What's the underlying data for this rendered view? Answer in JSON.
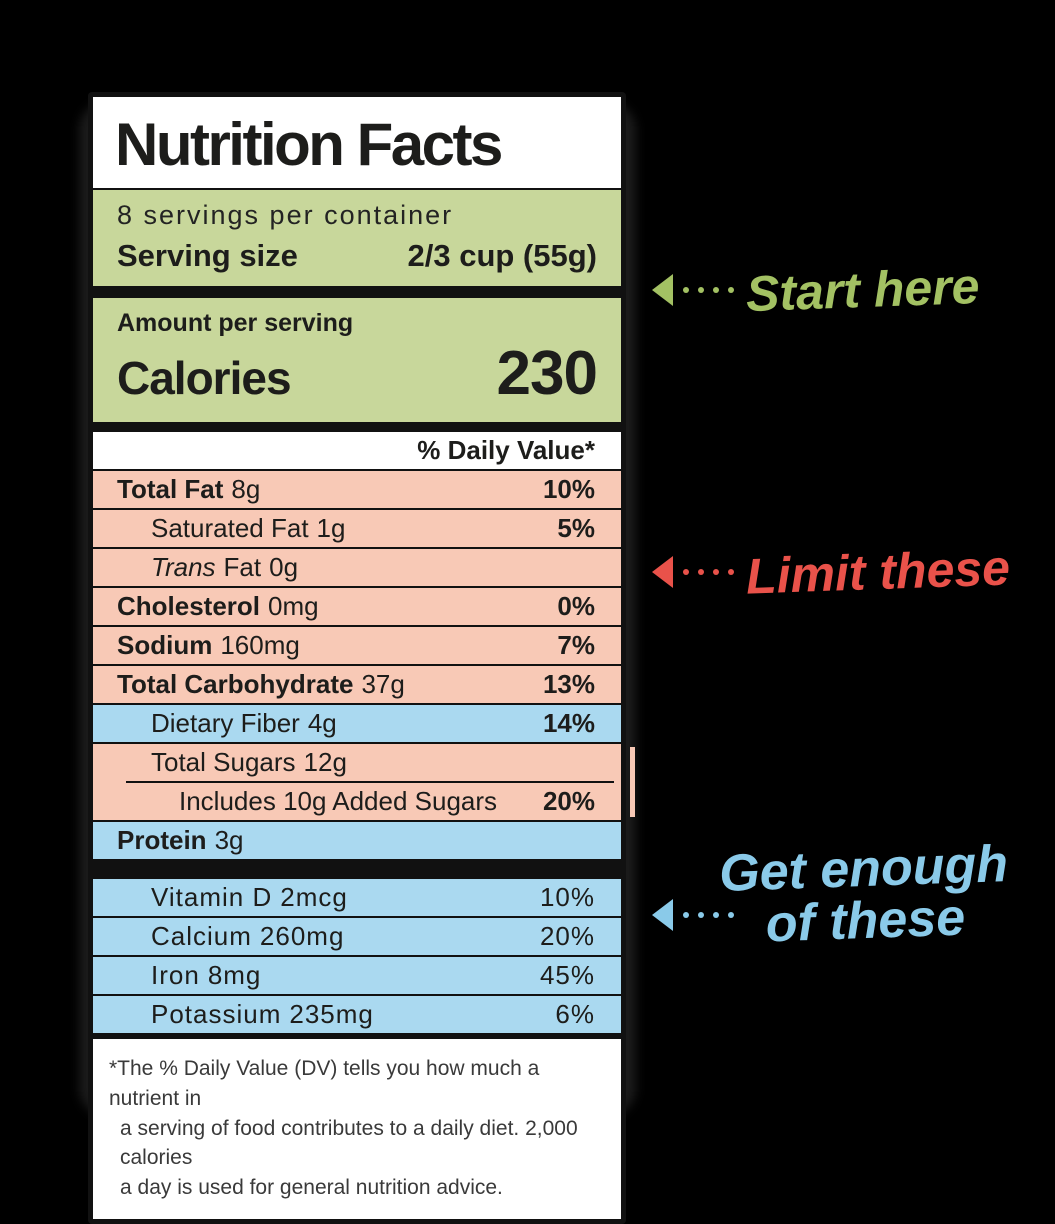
{
  "colors": {
    "highlight_green": "#c8d79b",
    "highlight_red": "#f8c9b6",
    "highlight_blue": "#aad9f0",
    "annotation_green": "#a3c163",
    "annotation_red": "#e9524a",
    "annotation_blue": "#8acae9",
    "label_border": "#111111",
    "background": "#000000"
  },
  "label": {
    "title": "Nutrition Facts",
    "servings_per_container": "8 servings per container",
    "serving_size": {
      "label": "Serving size",
      "value": "2/3 cup (55g)"
    },
    "calories": {
      "subtitle": "Amount per serving",
      "label": "Calories",
      "value": "230"
    },
    "daily_value_header": "% Daily Value*",
    "nutrients": [
      {
        "name": "Total Fat",
        "amount": "8g",
        "dv": "10%"
      },
      {
        "name": "Saturated Fat",
        "amount": "1g",
        "dv": "5%"
      },
      {
        "name_italic": "Trans",
        "name": "Fat",
        "amount": "0g",
        "dv": ""
      },
      {
        "name": "Cholesterol",
        "amount": "0mg",
        "dv": "0%"
      },
      {
        "name": "Sodium",
        "amount": "160mg",
        "dv": "7%"
      },
      {
        "name": "Total Carbohydrate",
        "amount": "37g",
        "dv": "13%"
      },
      {
        "name": "Dietary Fiber",
        "amount": "4g",
        "dv": "14%"
      },
      {
        "name": "Total Sugars",
        "amount": "12g",
        "dv": ""
      },
      {
        "name": "Includes 10g Added Sugars",
        "amount": "",
        "dv": "20%"
      },
      {
        "name": "Protein",
        "amount": "3g",
        "dv": ""
      }
    ],
    "vitamins": [
      {
        "name": "Vitamin D",
        "amount": "2mcg",
        "dv": "10%"
      },
      {
        "name": "Calcium",
        "amount": "260mg",
        "dv": "20%"
      },
      {
        "name": "Iron",
        "amount": "8mg",
        "dv": "45%"
      },
      {
        "name": "Potassium",
        "amount": "235mg",
        "dv": "6%"
      }
    ],
    "footnote_lines": [
      "*The % Daily Value (DV) tells you how much a nutrient in",
      "a serving of food contributes to a daily diet. 2,000 calories",
      "a day is used for general nutrition advice."
    ]
  },
  "annotations": {
    "start_here": {
      "text": "Start here"
    },
    "limit_these": {
      "text": "Limit these"
    },
    "get_enough": {
      "line1": "Get enough",
      "line2": "of these"
    }
  }
}
